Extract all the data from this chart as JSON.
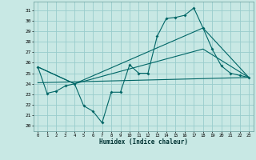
{
  "xlabel": "Humidex (Indice chaleur)",
  "bg_color": "#c8e8e4",
  "grid_color": "#99cccc",
  "line_color": "#006666",
  "xlim": [
    -0.5,
    23.5
  ],
  "ylim": [
    19.5,
    31.8
  ],
  "xticks": [
    0,
    1,
    2,
    3,
    4,
    5,
    6,
    7,
    8,
    9,
    10,
    11,
    12,
    13,
    14,
    15,
    16,
    17,
    18,
    19,
    20,
    21,
    22,
    23
  ],
  "yticks": [
    20,
    21,
    22,
    23,
    24,
    25,
    26,
    27,
    28,
    29,
    30,
    31
  ],
  "main_x": [
    0,
    1,
    2,
    3,
    4,
    5,
    6,
    7,
    8,
    9,
    10,
    11,
    12,
    13,
    14,
    15,
    16,
    17,
    18,
    19,
    20,
    21,
    22,
    23
  ],
  "main_y": [
    25.6,
    23.1,
    23.3,
    23.8,
    24.0,
    21.9,
    21.4,
    20.3,
    23.2,
    23.2,
    25.8,
    25.0,
    25.0,
    28.5,
    30.2,
    30.3,
    30.5,
    31.2,
    29.3,
    27.3,
    25.7,
    25.0,
    24.8,
    24.6
  ],
  "line2_x": [
    0,
    4,
    18,
    23
  ],
  "line2_y": [
    25.6,
    24.0,
    29.3,
    24.6
  ],
  "line3_x": [
    0,
    4,
    18,
    23
  ],
  "line3_y": [
    25.6,
    24.0,
    27.3,
    24.6
  ],
  "line4_x": [
    0,
    23
  ],
  "line4_y": [
    24.1,
    24.6
  ]
}
